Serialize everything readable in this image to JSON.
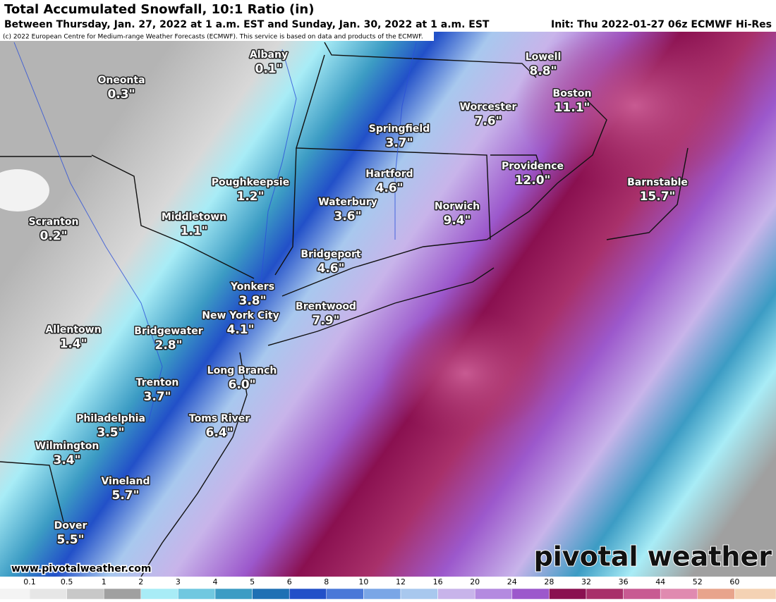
{
  "header": {
    "title": "Total Accumulated Snowfall, 10:1 Ratio (in)",
    "subtitle": "Between Thursday, Jan. 27, 2022 at 1 a.m. EST and Sunday, Jan. 30, 2022 at 1 a.m. EST",
    "init": "Init: Thu 2022-01-27 06z ECMWF Hi-Res",
    "copyright": "(c) 2022 European Centre for Medium-range Weather Forecasts (ECMWF). This service is based on data and products of the ECMWF."
  },
  "cities": [
    {
      "name": "Albany",
      "value": "0.1\""
    },
    {
      "name": "Oneonta",
      "value": "0.3\""
    },
    {
      "name": "Lowell",
      "value": "8.8\""
    },
    {
      "name": "Boston",
      "value": "11.1\""
    },
    {
      "name": "Worcester",
      "value": "7.6\""
    },
    {
      "name": "Springfield",
      "value": "3.7\""
    },
    {
      "name": "Hartford",
      "value": "4.6\""
    },
    {
      "name": "Providence",
      "value": "12.0\""
    },
    {
      "name": "Barnstable",
      "value": "15.7\""
    },
    {
      "name": "Poughkeepsie",
      "value": "1.2\""
    },
    {
      "name": "Waterbury",
      "value": "3.6\""
    },
    {
      "name": "Norwich",
      "value": "9.4\""
    },
    {
      "name": "Middletown",
      "value": "1.1\""
    },
    {
      "name": "Scranton",
      "value": "0.2\""
    },
    {
      "name": "Bridgeport",
      "value": "4.6\""
    },
    {
      "name": "Yonkers",
      "value": "3.8\""
    },
    {
      "name": "Brentwood",
      "value": "7.9\""
    },
    {
      "name": "New York City",
      "value": "4.1\""
    },
    {
      "name": "Allentown",
      "value": "1.4\""
    },
    {
      "name": "Bridgewater",
      "value": "2.8\""
    },
    {
      "name": "Long Branch",
      "value": "6.0\""
    },
    {
      "name": "Trenton",
      "value": "3.7\""
    },
    {
      "name": "Philadelphia",
      "value": "3.5\""
    },
    {
      "name": "Toms River",
      "value": "6.4\""
    },
    {
      "name": "Wilmington",
      "value": "3.4\""
    },
    {
      "name": "Vineland",
      "value": "5.7\""
    },
    {
      "name": "Dover",
      "value": "5.5\""
    }
  ],
  "colorbar": {
    "labels": [
      "0.1",
      "0.5",
      "1",
      "2",
      "3",
      "4",
      "5",
      "6",
      "8",
      "10",
      "12",
      "16",
      "20",
      "24",
      "28",
      "32",
      "36",
      "44",
      "52",
      "60"
    ],
    "colors": [
      "#e6e6e6",
      "#c8c8c8",
      "#a0a0a0",
      "#a8ecf6",
      "#70c8e0",
      "#3c9cc4",
      "#1f70b4",
      "#2250c8",
      "#4a78d8",
      "#7aa6e6",
      "#a8c8ee",
      "#c8b4ea",
      "#b48ae0",
      "#9c58cc",
      "#8a1050",
      "#a8306a",
      "#c85a92",
      "#e08ab0",
      "#e8a48c",
      "#f4d2b4"
    ]
  },
  "footer": {
    "website": "www.pivotalweather.com",
    "logo": "pivotal weather"
  }
}
